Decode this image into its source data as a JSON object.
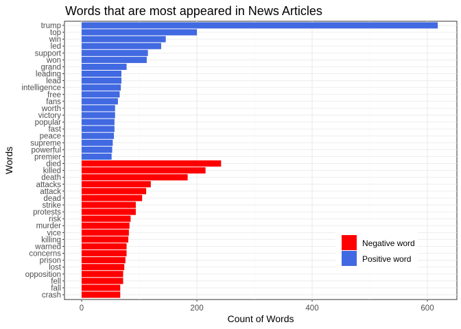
{
  "chart_data": {
    "type": "bar",
    "orientation": "horizontal",
    "title": "Words that are most appeared in News Articles",
    "xlabel": "Count of Words",
    "ylabel": "Words",
    "xlim": [
      0,
      640
    ],
    "xticks": [
      0,
      200,
      400,
      600
    ],
    "grid": true,
    "legend_position": "bottom-right",
    "categories": [
      "trump",
      "top",
      "win",
      "led",
      "support",
      "won",
      "grand",
      "leading",
      "lead",
      "intelligence",
      "free",
      "fans",
      "worth",
      "victory",
      "popular",
      "fast",
      "peace",
      "supreme",
      "powerful",
      "premier",
      "died",
      "killed",
      "death",
      "attacks",
      "attack",
      "dead",
      "strike",
      "protests",
      "risk",
      "murder",
      "vice",
      "killing",
      "warned",
      "concerns",
      "prison",
      "lost",
      "opposition",
      "fell",
      "fall",
      "crash"
    ],
    "values": [
      618,
      200,
      146,
      138,
      115,
      113,
      78,
      69,
      69,
      68,
      66,
      63,
      58,
      58,
      57,
      57,
      56,
      54,
      53,
      52,
      242,
      215,
      184,
      120,
      112,
      105,
      94,
      94,
      85,
      83,
      82,
      81,
      78,
      78,
      76,
      74,
      72,
      72,
      67,
      67
    ],
    "sentiment": [
      "positive",
      "positive",
      "positive",
      "positive",
      "positive",
      "positive",
      "positive",
      "positive",
      "positive",
      "positive",
      "positive",
      "positive",
      "positive",
      "positive",
      "positive",
      "positive",
      "positive",
      "positive",
      "positive",
      "positive",
      "negative",
      "negative",
      "negative",
      "negative",
      "negative",
      "negative",
      "negative",
      "negative",
      "negative",
      "negative",
      "negative",
      "negative",
      "negative",
      "negative",
      "negative",
      "negative",
      "negative",
      "negative",
      "negative",
      "negative"
    ],
    "legend": [
      {
        "key": "negative",
        "label": "Negative word",
        "color": "#ff0000"
      },
      {
        "key": "positive",
        "label": "Positive word",
        "color": "#4169e1"
      }
    ]
  }
}
